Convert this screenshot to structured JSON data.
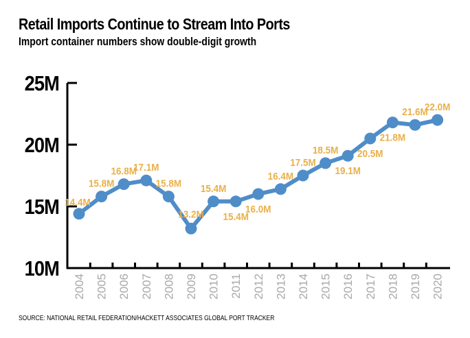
{
  "chart_data": {
    "type": "line",
    "title": "Retail Imports Continue to Stream Into Ports",
    "subtitle": "Import container numbers show double-digit growth",
    "source": "SOURCE: NATIONAL RETAIL FEDERATION/HACKETT ASSOCIATES GLOBAL PORT TRACKER",
    "xlabel": "",
    "ylabel": "",
    "x": [
      "2004",
      "2005",
      "2006",
      "2007",
      "2008",
      "2009",
      "2010",
      "2011",
      "2012",
      "2013",
      "2014",
      "2015",
      "2016",
      "2017",
      "2018",
      "2019",
      "2020"
    ],
    "series": [
      {
        "values": [
          14.4,
          15.8,
          16.8,
          17.1,
          15.8,
          13.2,
          15.4,
          15.4,
          16.0,
          16.4,
          17.5,
          18.5,
          19.1,
          20.5,
          21.8,
          21.6,
          22.0
        ],
        "labels": [
          "14.4M",
          "15.8M",
          "16.8M",
          "17.1M",
          "15.8M",
          "13.2M",
          "15.4M",
          "15.4M",
          "16.0M",
          "16.4M",
          "17.5M",
          "18.5M",
          "19.1M",
          "20.5M",
          "21.8M",
          "21.6M",
          "22.0M"
        ],
        "color": "#4f8dc8"
      }
    ],
    "ylim": [
      10,
      25
    ],
    "yticks": [
      25,
      20,
      15,
      10
    ],
    "ytick_labels": [
      "25M",
      "20M",
      "15M",
      "10M"
    ],
    "grid": false,
    "label_color": "#e9b048",
    "xtick_color": "#a8a8a8"
  }
}
